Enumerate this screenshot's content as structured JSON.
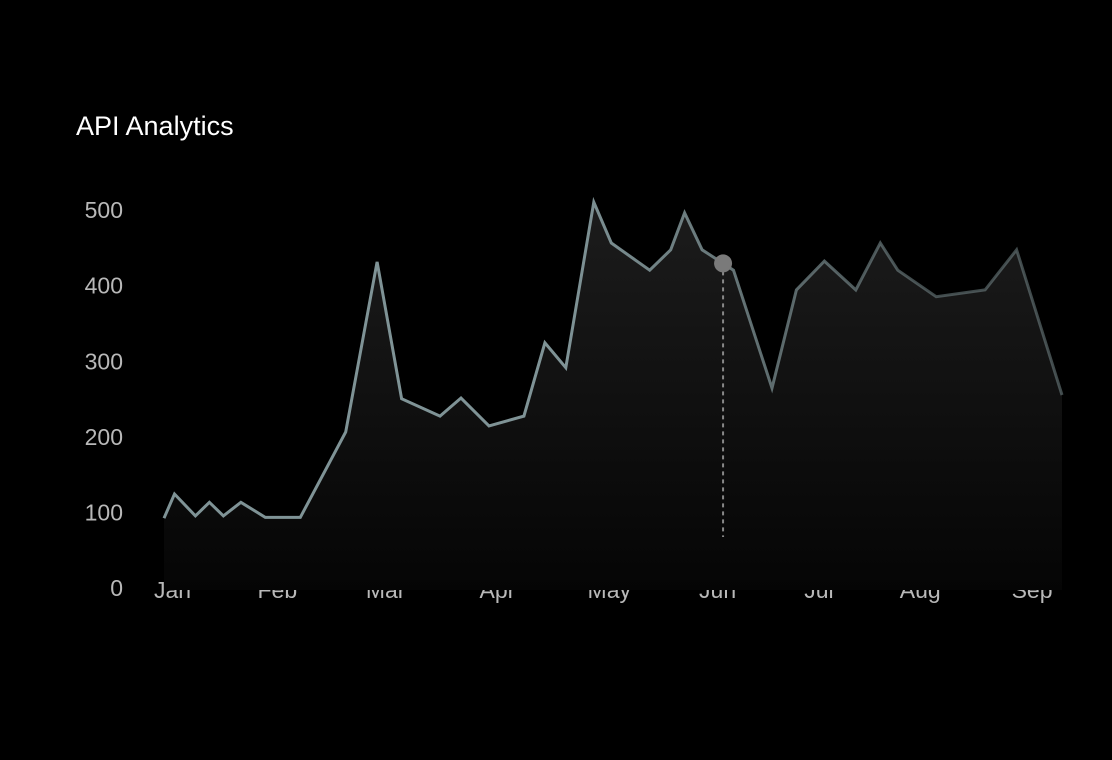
{
  "chart_data": {
    "type": "line",
    "title": "API Analytics",
    "x": [
      0,
      3,
      9,
      13,
      17,
      22,
      29,
      39,
      52,
      61,
      68,
      79,
      85,
      93,
      103,
      109,
      115,
      123,
      128,
      139,
      145,
      149,
      154,
      160,
      163,
      174,
      181,
      189,
      198,
      205,
      210,
      221,
      235,
      244,
      257
    ],
    "series": [
      {
        "color": "#7f9396",
        "values": [
          95,
          127,
          98,
          116,
          98,
          116,
          96,
          96,
          209,
          434,
          253,
          230,
          254,
          217,
          230,
          327,
          294,
          513,
          459,
          423,
          450,
          499,
          450,
          432,
          423,
          267,
          397,
          435,
          397,
          459,
          423,
          388,
          397,
          450,
          258
        ]
      }
    ],
    "xlim": [
      0,
      257
    ],
    "xticks": [
      {
        "value": 1,
        "label": "Jan"
      },
      {
        "value": 31,
        "label": "Feb"
      },
      {
        "value": 62,
        "label": "Mar"
      },
      {
        "value": 94,
        "label": "Apr"
      },
      {
        "value": 126,
        "label": "May"
      },
      {
        "value": 157,
        "label": "Jun"
      },
      {
        "value": 186,
        "label": "Jul"
      },
      {
        "value": 215,
        "label": "Aug"
      },
      {
        "value": 247,
        "label": "Sep"
      }
    ],
    "ylim": [
      0,
      550
    ],
    "yticks": [
      0,
      100,
      200,
      300,
      400,
      500
    ],
    "grid": false,
    "hover_index": 23
  }
}
